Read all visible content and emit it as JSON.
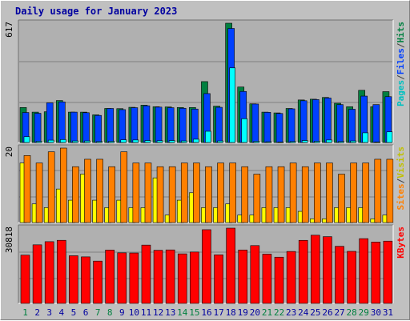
{
  "title": "Daily usage for January 2023",
  "colors": {
    "background": "#c0c0c0",
    "panel": "#b0b0b0",
    "grid": "#808080",
    "hits": "#008040",
    "files": "#0040ff",
    "pages": "#00ffff",
    "visits": "#ffff00",
    "sites": "#ff8000",
    "kbytes": "#ff0000",
    "title": "#0000a0",
    "weekend_day": "#008040",
    "weekday": "#0000a0"
  },
  "chart_data": {
    "type": "bar",
    "categories": [
      "1",
      "2",
      "3",
      "4",
      "5",
      "6",
      "7",
      "8",
      "9",
      "10",
      "11",
      "12",
      "13",
      "14",
      "15",
      "16",
      "17",
      "18",
      "19",
      "20",
      "21",
      "22",
      "23",
      "24",
      "25",
      "26",
      "27",
      "28",
      "29",
      "30",
      "31"
    ],
    "weekend_days": [
      "1",
      "7",
      "8",
      "14",
      "15",
      "21",
      "22",
      "28",
      "29"
    ],
    "panels": [
      {
        "max_label": "617",
        "max": 617,
        "legend": [
          {
            "text": "Pages",
            "color": "#00c0c0"
          },
          {
            "text": "/",
            "color": "#404040"
          },
          {
            "text": "Files",
            "color": "#0040ff"
          },
          {
            "text": "/",
            "color": "#404040"
          },
          {
            "text": "Hits",
            "color": "#008040"
          }
        ],
        "series": [
          {
            "name": "Hits",
            "color": "#008040",
            "values": [
              181,
              157,
              159,
              217,
              157,
              157,
              143,
              176,
              175,
              182,
              193,
              185,
              184,
              181,
              181,
              315,
              188,
              617,
              287,
              200,
              157,
              153,
              176,
              220,
              224,
              233,
              203,
              185,
              270,
              185,
              263
            ]
          },
          {
            "name": "Files",
            "color": "#0040ff",
            "values": [
              155,
              151,
              205,
              210,
              157,
              154,
              140,
              176,
              170,
              180,
              190,
              183,
              180,
              177,
              173,
              253,
              182,
              590,
              264,
              199,
              156,
              150,
              174,
              216,
              222,
              230,
              196,
              172,
              240,
              196,
              237
            ]
          },
          {
            "name": "Pages",
            "color": "#00ffff",
            "values": [
              30,
              6,
              12,
              15,
              8,
              8,
              5,
              6,
              14,
              13,
              10,
              9,
              10,
              8,
              17,
              58,
              8,
              386,
              123,
              6,
              4,
              3,
              5,
              10,
              6,
              13,
              5,
              8,
              50,
              3,
              55
            ]
          }
        ]
      },
      {
        "max_label": "20",
        "max": 20,
        "legend": [
          {
            "text": "Sites",
            "color": "#ff8000"
          },
          {
            "text": "/",
            "color": "#404040"
          },
          {
            "text": "Visits",
            "color": "#c0c000"
          }
        ],
        "series": [
          {
            "name": "Visits",
            "color": "#ffff00",
            "values": [
              16,
              5,
              4,
              9,
              6,
              13,
              6,
              4,
              6,
              4,
              4,
              12,
              2,
              6,
              8,
              4,
              4,
              5,
              2,
              2,
              4,
              4,
              4,
              3,
              1,
              1,
              4,
              4,
              4,
              1,
              2
            ]
          },
          {
            "name": "Sites",
            "color": "#ff8000",
            "values": [
              18,
              16,
              19,
              20,
              15,
              17,
              17,
              15,
              19,
              16,
              16,
              15,
              15,
              16,
              16,
              15,
              16,
              16,
              15,
              13,
              15,
              15,
              16,
              15,
              16,
              16,
              13,
              16,
              16,
              17,
              17
            ]
          }
        ]
      },
      {
        "max_label": "30818",
        "max": 30818,
        "legend": [
          {
            "text": "KBytes",
            "color": "#ff0000"
          }
        ],
        "series": [
          {
            "name": "KBytes",
            "color": "#ff0000",
            "values": [
              19760,
              23985,
              25275,
              25830,
              19515,
              19050,
              17320,
              21850,
              20700,
              20640,
              23880,
              21750,
              21905,
              20290,
              21035,
              30180,
              19885,
              30818,
              21880,
              23670,
              20170,
              18935,
              21270,
              25820,
              27920,
              27330,
              23375,
              21315,
              26520,
              25140,
              25500
            ]
          }
        ]
      }
    ]
  }
}
